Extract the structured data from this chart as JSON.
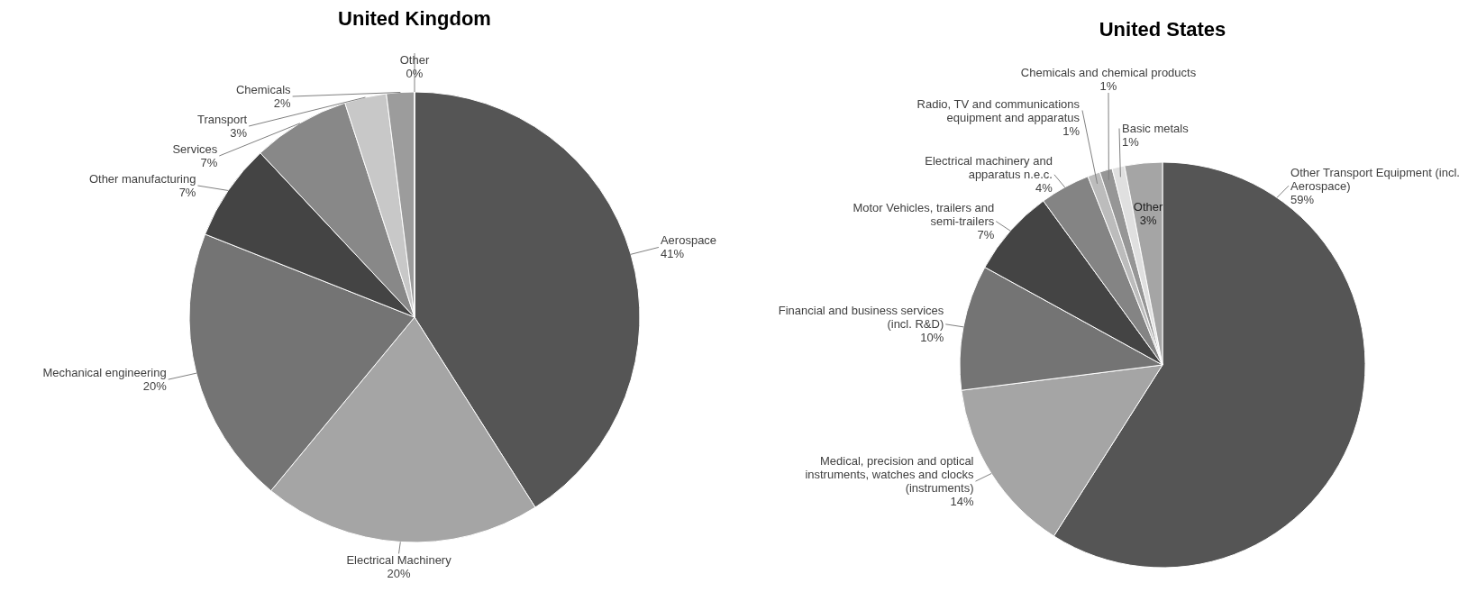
{
  "chart_data": [
    {
      "type": "pie",
      "title": "United Kingdom",
      "categories": [
        "Aerospace",
        "Electrical Machinery",
        "Mechanical engineering",
        "Other manufacturing",
        "Services",
        "Transport",
        "Chemicals",
        "Other"
      ],
      "values": [
        41,
        20,
        20,
        7,
        7,
        3,
        2,
        0
      ],
      "value_labels": [
        "41%",
        "20%",
        "20%",
        "7%",
        "7%",
        "3%",
        "2%",
        "0%"
      ],
      "colors": [
        "#555555",
        "#a5a5a5",
        "#747474",
        "#444444",
        "#888888",
        "#c8c8c8",
        "#9c9c9c",
        "#a5a5a5"
      ]
    },
    {
      "type": "pie",
      "title": "United States",
      "categories": [
        "Other Transport Equipment (incl. Aerospace)",
        "Medical, precision and optical instruments, watches and clocks (instruments)",
        "Financial and business services (incl. R&D)",
        "Motor Vehicles, trailers and semi-trailers",
        "Electrical machinery and apparatus n.e.c.",
        "Radio, TV and communications equipment and apparatus",
        "Chemicals and chemical products",
        "Basic metals",
        "Other"
      ],
      "values": [
        59,
        14,
        10,
        7,
        4,
        1,
        1,
        1,
        3
      ],
      "value_labels": [
        "59%",
        "14%",
        "10%",
        "7%",
        "4%",
        "1%",
        "1%",
        "1%",
        "3%"
      ],
      "colors": [
        "#555555",
        "#a5a5a5",
        "#747474",
        "#444444",
        "#848484",
        "#bcbcbc",
        "#969696",
        "#e0e0e0",
        "#a5a5a5"
      ]
    }
  ]
}
